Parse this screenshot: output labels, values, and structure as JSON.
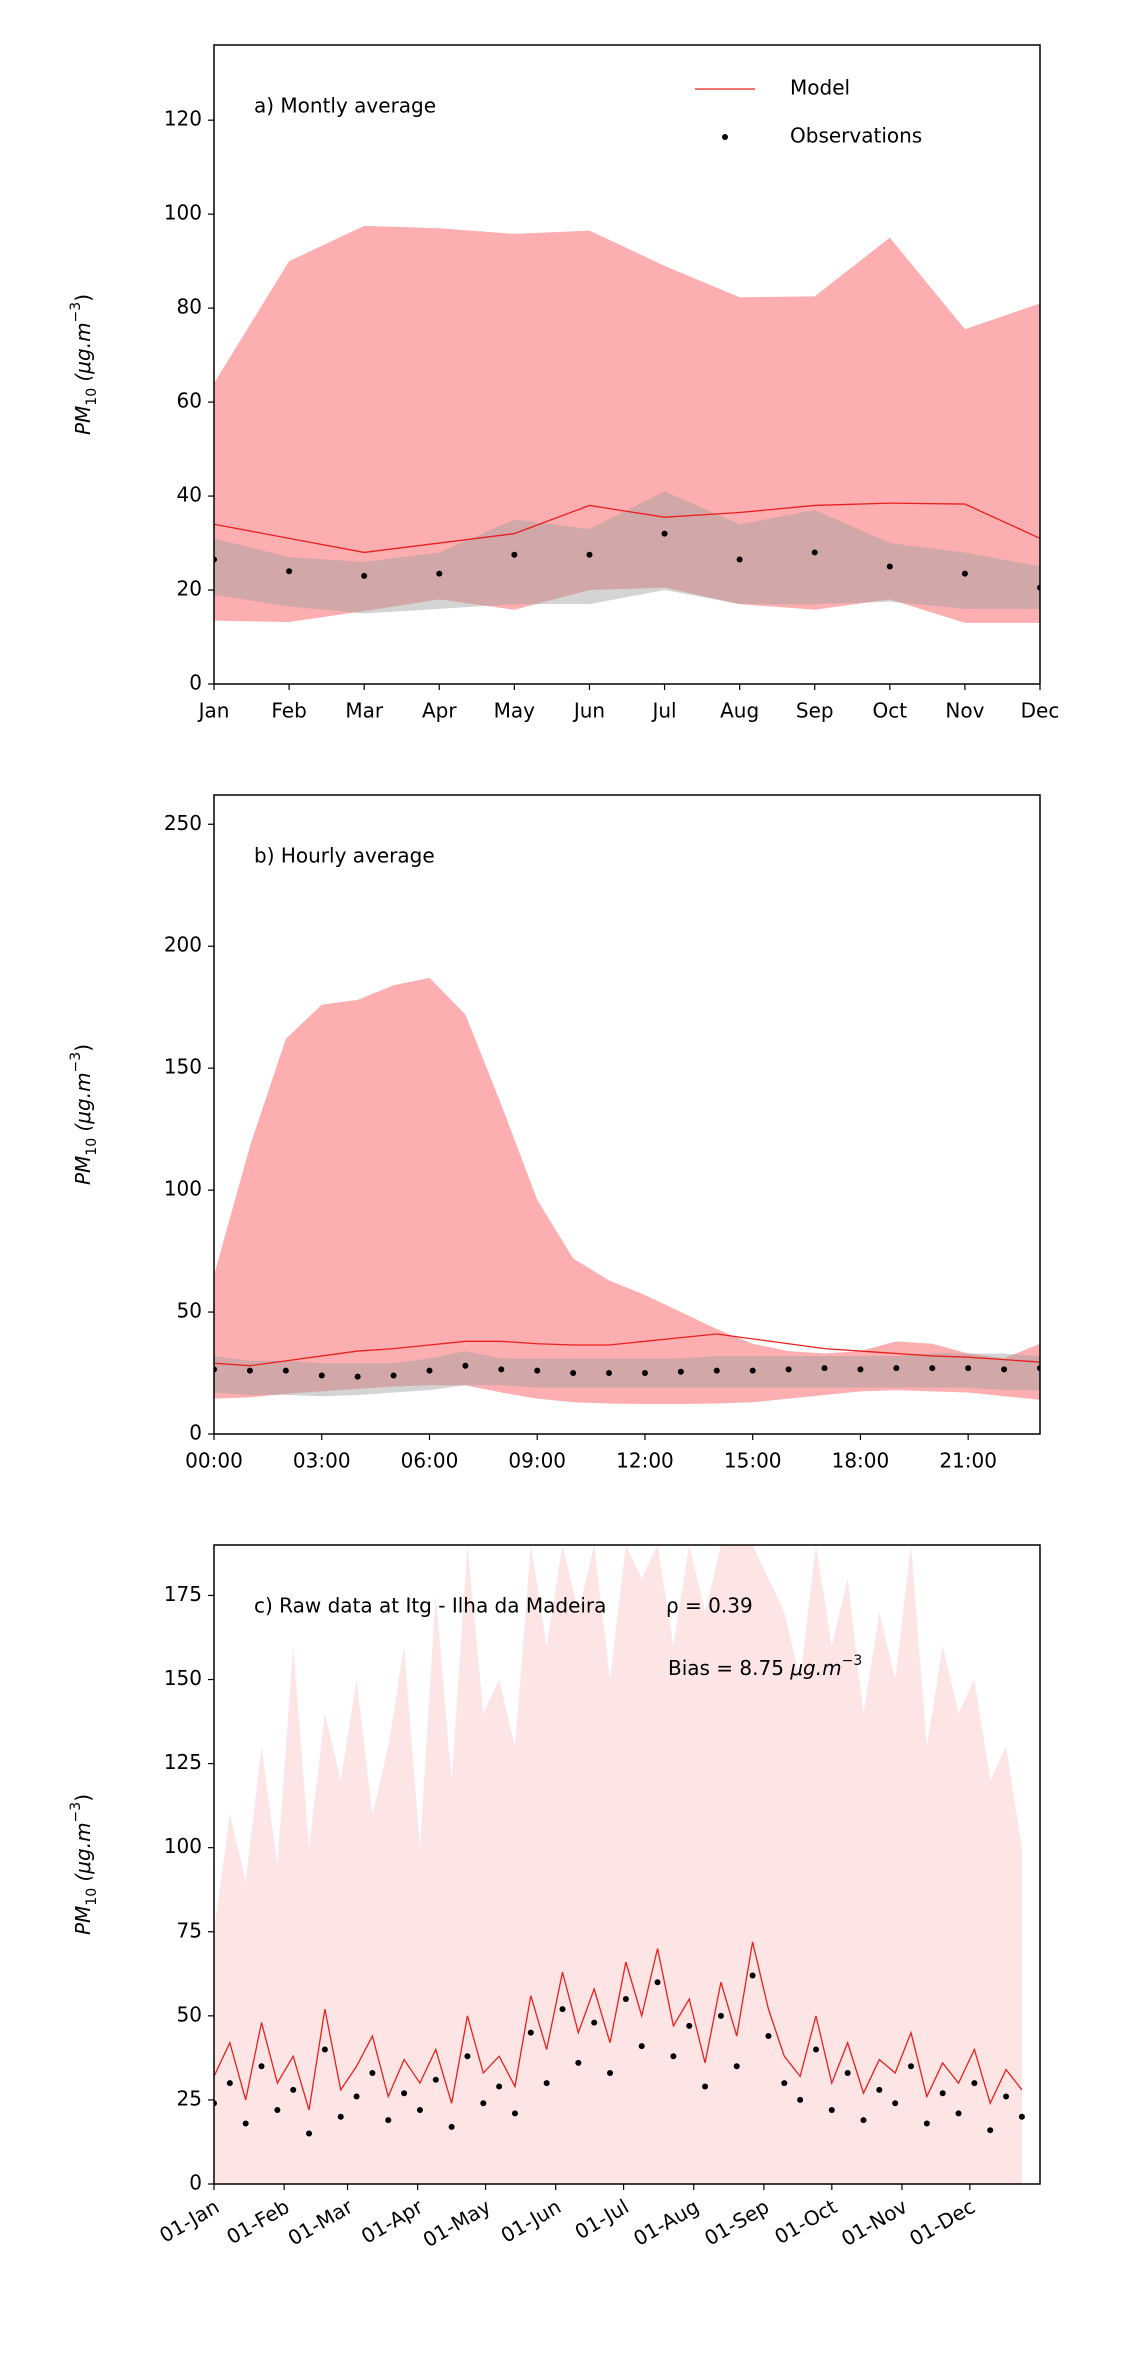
{
  "chart_data": [
    {
      "type": "line",
      "title": "a) Montly average",
      "ylabel": [
        "PM",
        "10",
        " (μg.m",
        "−3",
        ")"
      ],
      "categories": [
        "Jan",
        "Feb",
        "Mar",
        "Apr",
        "May",
        "Jun",
        "Jul",
        "Aug",
        "Sep",
        "Oct",
        "Nov",
        "Dec"
      ],
      "ylim": [
        0,
        136
      ],
      "yticks": [
        0,
        20,
        40,
        60,
        80,
        100,
        120
      ],
      "legend": "upper right",
      "series": [
        {
          "name": "Model",
          "color": "#e8201e",
          "style": "line",
          "values": [
            34,
            31,
            28,
            30,
            32,
            38,
            35.5,
            36.5,
            38,
            38.5,
            38.3,
            31
          ],
          "band": {
            "color": "#fca0a2",
            "upper": [
              64,
              90,
              97.5,
              97,
              95.8,
              96.5,
              89,
              82.3,
              82.5,
              95,
              75.5,
              81
            ],
            "lower": [
              13.5,
              13.2,
              15.5,
              18,
              15.8,
              20,
              20.5,
              17,
              15.8,
              18,
              13,
              13
            ]
          }
        },
        {
          "name": "Observations",
          "color": "#000000",
          "style": "points",
          "values": [
            26.5,
            24,
            23,
            23.5,
            27.5,
            27.5,
            32,
            26.5,
            28,
            25,
            23.5,
            20.5
          ],
          "band": {
            "color": "#a0a0a0",
            "upper": [
              31,
              27,
              26,
              28,
              35,
              33,
              41,
              34,
              37,
              30,
              28,
              25
            ],
            "lower": [
              19,
              16.5,
              15,
              16,
              17,
              17,
              20,
              17,
              17,
              17.5,
              16,
              16
            ]
          }
        }
      ]
    },
    {
      "type": "line",
      "title": "b) Hourly average",
      "ylabel": [
        "PM",
        "10",
        " (μg.m",
        "−3",
        ")"
      ],
      "x": [
        0,
        1,
        2,
        3,
        4,
        5,
        6,
        7,
        8,
        9,
        10,
        11,
        12,
        13,
        14,
        15,
        16,
        17,
        18,
        19,
        20,
        21,
        22,
        23
      ],
      "xlim": [
        0,
        23
      ],
      "xticks": [
        {
          "value": 0,
          "label": "00:00"
        },
        {
          "value": 3,
          "label": "03:00"
        },
        {
          "value": 6,
          "label": "06:00"
        },
        {
          "value": 9,
          "label": "09:00"
        },
        {
          "value": 12,
          "label": "12:00"
        },
        {
          "value": 15,
          "label": "15:00"
        },
        {
          "value": 18,
          "label": "18:00"
        },
        {
          "value": 21,
          "label": "21:00"
        }
      ],
      "ylim": [
        0,
        262
      ],
      "yticks": [
        0,
        50,
        100,
        150,
        200,
        250
      ],
      "series": [
        {
          "color": "#e8201e",
          "style": "line",
          "values": [
            29,
            28,
            30,
            32,
            34,
            35,
            36.5,
            38,
            38,
            37,
            36.5,
            36.5,
            38,
            39.5,
            41,
            39,
            37,
            35,
            34,
            33,
            32,
            31.5,
            30.5,
            29.5
          ],
          "band": {
            "color": "#fca0a2",
            "upper": [
              65,
              118,
              162,
              176,
              178,
              184,
              187,
              172,
              135,
              96,
              72,
              63,
              57,
              50,
              43,
              37,
              34,
              33,
              34,
              38,
              37,
              33,
              31,
              37
            ],
            "lower": [
              14.5,
              15,
              16.5,
              17.5,
              18.5,
              19.5,
              20,
              20,
              17,
              14.5,
              13,
              12.5,
              12.3,
              12.3,
              12.5,
              13,
              14.5,
              16,
              17.5,
              18,
              17.5,
              17,
              15.5,
              14
            ]
          }
        },
        {
          "color": "#000000",
          "style": "points",
          "values": [
            26.5,
            26,
            26,
            24,
            23.5,
            24,
            26,
            28,
            26.5,
            26,
            25,
            25,
            25,
            25.5,
            26,
            26,
            26.5,
            27,
            26.5,
            27,
            27,
            27,
            26.5,
            27
          ],
          "band": {
            "color": "#a0a0a0",
            "upper": [
              32,
              30,
              30,
              29,
              29,
              29,
              31,
              34,
              31,
              31,
              31,
              31,
              31,
              31,
              32,
              32,
              32,
              32,
              32,
              32,
              33,
              33,
              33,
              32
            ],
            "lower": [
              17,
              16,
              16,
              15.5,
              16,
              17,
              18,
              20,
              20,
              19,
              19,
              19,
              19,
              19,
              19,
              19,
              19,
              19,
              19,
              19,
              19,
              19,
              18,
              18
            ]
          }
        }
      ]
    },
    {
      "type": "line",
      "title": "c) Raw data at Itg - Ilha da Madeira",
      "annotations": [
        "ρ = 0.39"
      ],
      "bias": [
        "Bias = 8.75 ",
        "μg.m",
        "−3"
      ],
      "ylabel": [
        "PM",
        "10",
        " (μg.m",
        "−3",
        ")"
      ],
      "x": [
        0,
        7,
        14,
        21,
        28,
        35,
        42,
        49,
        56,
        63,
        70,
        77,
        84,
        91,
        98,
        105,
        112,
        119,
        126,
        133,
        140,
        147,
        154,
        161,
        168,
        175,
        182,
        189,
        196,
        203,
        210,
        217,
        224,
        231,
        238,
        245,
        252,
        259,
        266,
        273,
        280,
        287,
        294,
        301,
        308,
        315,
        322,
        329,
        336,
        343,
        350,
        357
      ],
      "xlim": [
        0,
        365
      ],
      "xticks": [
        {
          "value": 0,
          "label": "01-Jan"
        },
        {
          "value": 31,
          "label": "01-Feb"
        },
        {
          "value": 59,
          "label": "01-Mar"
        },
        {
          "value": 90,
          "label": "01-Apr"
        },
        {
          "value": 120,
          "label": "01-May"
        },
        {
          "value": 151,
          "label": "01-Jun"
        },
        {
          "value": 181,
          "label": "01-Jul"
        },
        {
          "value": 212,
          "label": "01-Aug"
        },
        {
          "value": 243,
          "label": "01-Sep"
        },
        {
          "value": 273,
          "label": "01-Oct"
        },
        {
          "value": 304,
          "label": "01-Nov"
        },
        {
          "value": 334,
          "label": "01-Dec"
        }
      ],
      "ylim": [
        0,
        190
      ],
      "yticks": [
        0,
        25,
        50,
        75,
        100,
        125,
        150,
        175
      ],
      "series": [
        {
          "color": "#e8201e",
          "style": "line",
          "values": [
            32,
            42,
            25,
            48,
            30,
            38,
            22,
            52,
            28,
            35,
            44,
            26,
            37,
            30,
            40,
            24,
            50,
            33,
            38,
            29,
            56,
            40,
            63,
            45,
            58,
            42,
            66,
            50,
            70,
            47,
            55,
            36,
            60,
            44,
            72,
            52,
            38,
            32,
            50,
            30,
            42,
            27,
            37,
            33,
            45,
            26,
            36,
            30,
            40,
            24,
            34,
            28
          ],
          "band": {
            "color": "#fde0e0",
            "upper": [
              75,
              110,
              90,
              130,
              95,
              160,
              100,
              140,
              120,
              150,
              110,
              130,
              160,
              100,
              175,
              120,
              190,
              140,
              150,
              130,
              190,
              160,
              190,
              170,
              190,
              150,
              190,
              180,
              190,
              160,
              190,
              170,
              190,
              190,
              190,
              180,
              170,
              150,
              190,
              160,
              180,
              140,
              170,
              150,
              190,
              130,
              160,
              140,
              150,
              120,
              130,
              100
            ]
          }
        },
        {
          "color": "#000000",
          "style": "points",
          "values": [
            24,
            30,
            18,
            35,
            22,
            28,
            15,
            40,
            20,
            26,
            33,
            19,
            27,
            22,
            31,
            17,
            38,
            24,
            29,
            21,
            45,
            30,
            52,
            36,
            48,
            33,
            55,
            41,
            60,
            38,
            47,
            29,
            50,
            35,
            62,
            44,
            30,
            25,
            40,
            22,
            33,
            19,
            28,
            24,
            35,
            18,
            27,
            21,
            30,
            16,
            26,
            20
          ]
        }
      ]
    }
  ]
}
